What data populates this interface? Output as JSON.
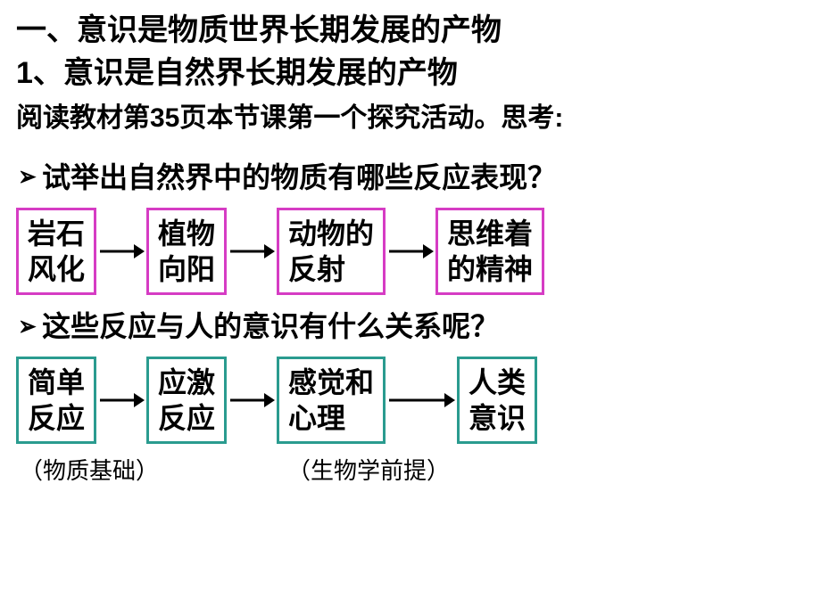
{
  "heading1": "一、意识是物质世界长期发展的产物",
  "heading2": "1、意识是自然界长期发展的产物",
  "subtext": "阅读教材第35页本节课第一个探究活动。思考:",
  "q1": "试举出自然界中的物质有哪些反应表现？",
  "q2": "这些反应与人的意识有什么关系呢？",
  "row1": {
    "b1": "岩石\n风化",
    "b2": "植物\n向阳",
    "b3": "动物的\n反射",
    "b4": "思维着\n的精神"
  },
  "row2": {
    "b1": "简单\n反应",
    "b2": "应激\n反应",
    "b3": "感觉和\n心理",
    "b4": "人类\n意识"
  },
  "annot1": "（物质基础）",
  "annot2": "（生物学前提）",
  "colors": {
    "magenta": "#d63cc4",
    "teal": "#2a9b8f",
    "arrow": "#000000",
    "text": "#000000",
    "bg": "#ffffff"
  },
  "arrow": {
    "width": 56,
    "height": 22,
    "stroke": 3
  },
  "arrow_wide": {
    "width": 80,
    "height": 22,
    "stroke": 3
  }
}
